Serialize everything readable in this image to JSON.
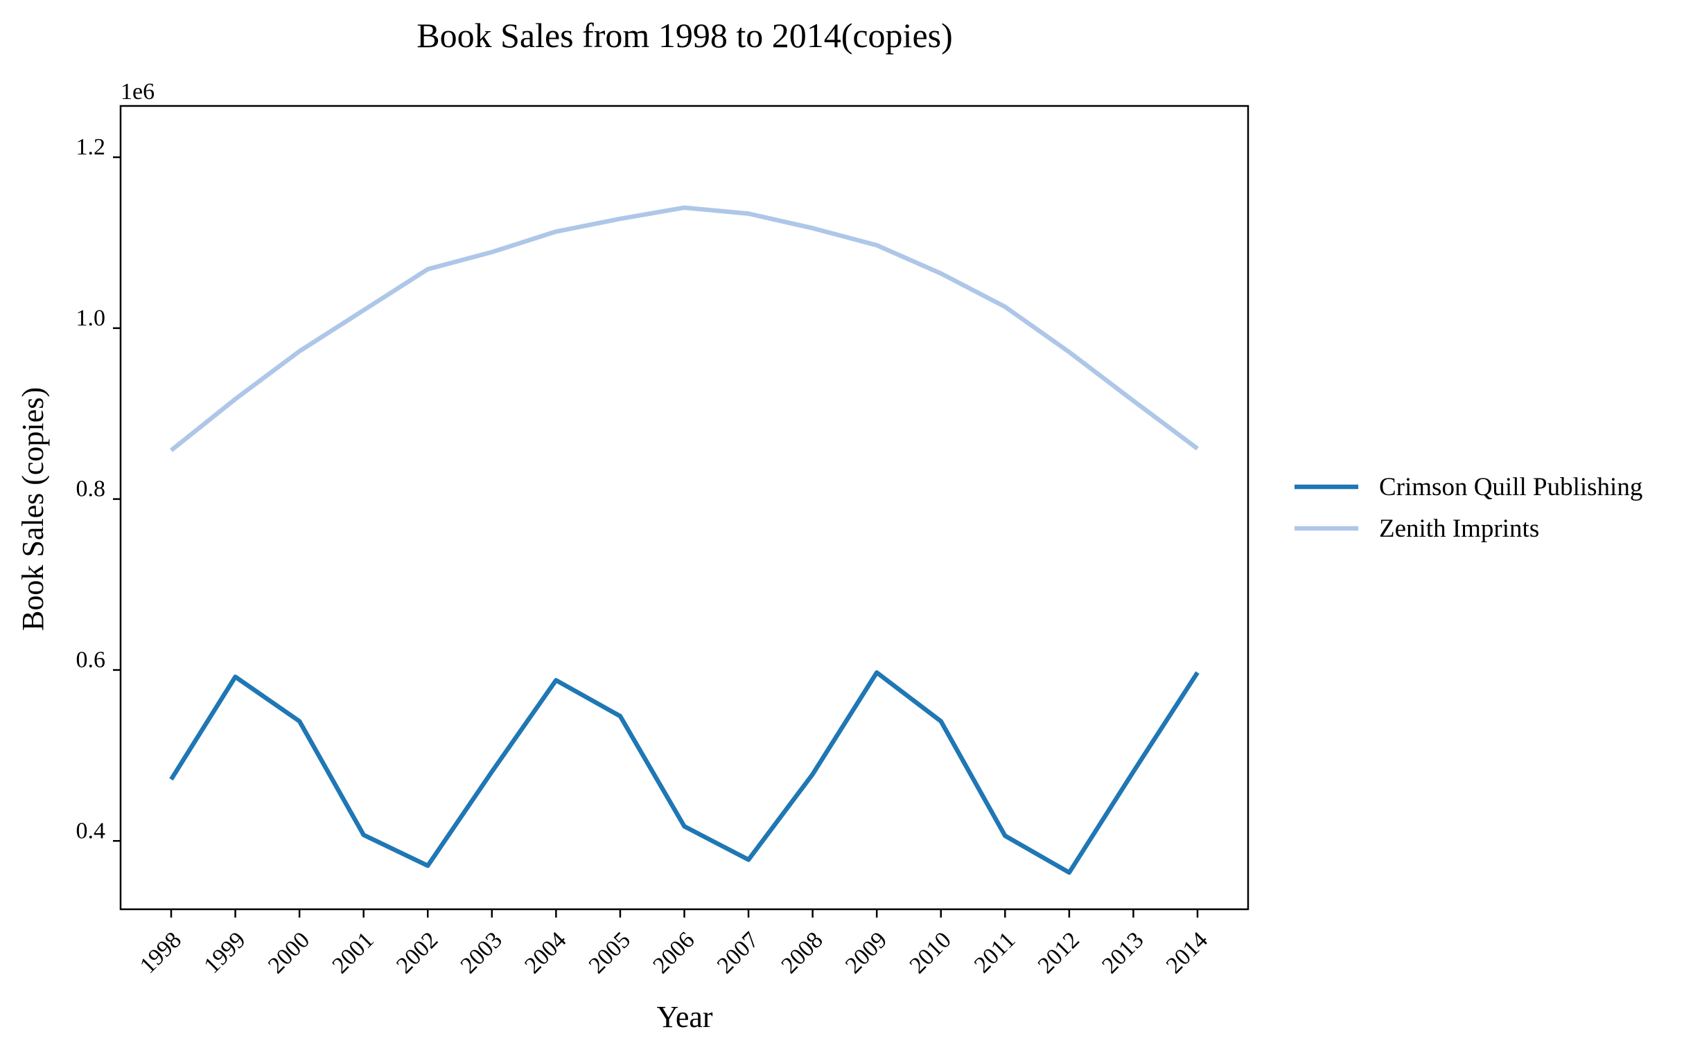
{
  "chart_data": {
    "type": "line",
    "title": "Book Sales from 1998 to 2014(copies)",
    "xlabel": "Year",
    "ylabel": "Book Sales (copies)",
    "y_offset_label": "1e6",
    "y_scale": 1000000,
    "ylim": [
      320000,
      1260000
    ],
    "y_ticks": [
      400000,
      600000,
      800000,
      1000000,
      1200000
    ],
    "y_tick_labels": [
      "0.4",
      "0.6",
      "0.8",
      "1.0",
      "1.2"
    ],
    "categories": [
      "1998",
      "1999",
      "2000",
      "2001",
      "2002",
      "2003",
      "2004",
      "2005",
      "2006",
      "2007",
      "2008",
      "2009",
      "2010",
      "2011",
      "2012",
      "2013",
      "2014"
    ],
    "grid": false,
    "legend_position": "right",
    "series": [
      {
        "name": "Crimson Quill Publishing",
        "color": "#1f77b4",
        "values": [
          472000,
          592000,
          540000,
          407000,
          371000,
          481000,
          588000,
          546000,
          417000,
          378000,
          478000,
          597000,
          540000,
          406000,
          363000,
          481000,
          597000
        ]
      },
      {
        "name": "Zenith Imprints",
        "color": "#aec7e8",
        "values": [
          857000,
          917000,
          973000,
          1021000,
          1069000,
          1089000,
          1113000,
          1128000,
          1141000,
          1134000,
          1117000,
          1097000,
          1064000,
          1025000,
          972000,
          915000,
          859000
        ]
      }
    ]
  }
}
